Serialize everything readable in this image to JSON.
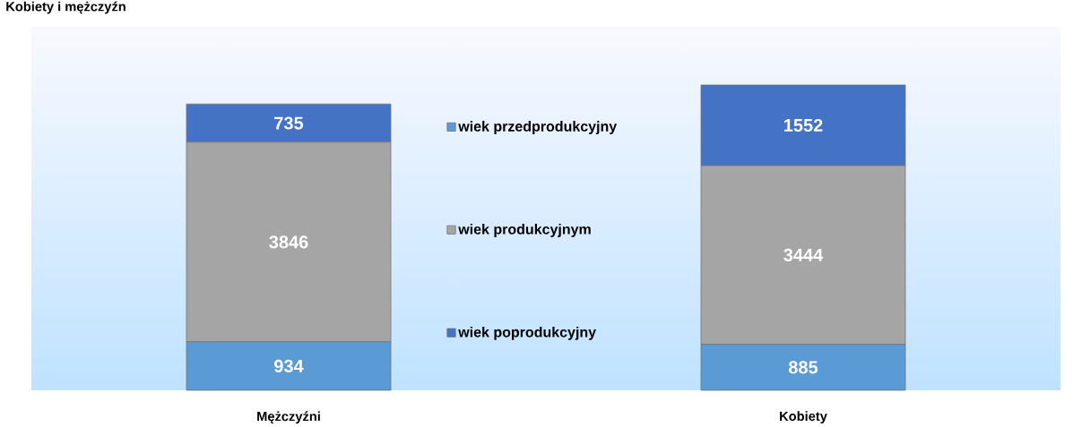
{
  "chart_data": {
    "type": "bar",
    "stacked": true,
    "title": "Kobiety i mężczyźn",
    "categories": [
      "Mężczyźni",
      "Kobiety"
    ],
    "series": [
      {
        "name": "wiek przedprodukcyjny",
        "color": "#5b9bd5",
        "values": [
          934,
          885
        ]
      },
      {
        "name": "wiek produkcyjnym",
        "color": "#a5a5a5",
        "values": [
          3846,
          3444
        ]
      },
      {
        "name": "wiek poprodukcyjny",
        "color": "#4472c4",
        "values": [
          735,
          1552
        ]
      }
    ],
    "data_labels": true,
    "legend": "center",
    "grid": false,
    "tick_labels": "x"
  }
}
